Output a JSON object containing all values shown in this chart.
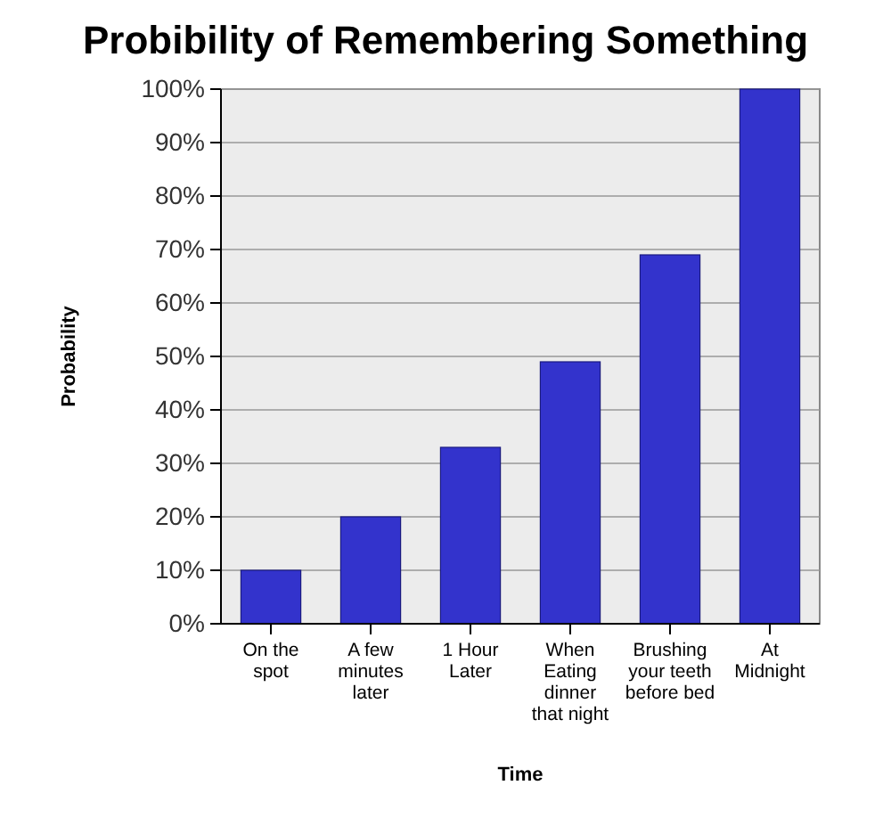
{
  "chart_data": {
    "type": "bar",
    "title": "Probibility of Remembering Something",
    "xlabel": "Time",
    "ylabel": "Probability",
    "categories": [
      "On the spot",
      "A few minutes later",
      "1 Hour Later",
      "When Eating dinner that night",
      "Brushing your teeth before bed",
      "At Midnight"
    ],
    "values": [
      10,
      20,
      33,
      49,
      69,
      100
    ],
    "color": "#3333cc",
    "ylim": [
      0,
      100
    ],
    "yticks": [
      {
        "value": 0,
        "label": "0%"
      },
      {
        "value": 10,
        "label": "10%"
      },
      {
        "value": 20,
        "label": "20%"
      },
      {
        "value": 30,
        "label": "30%"
      },
      {
        "value": 40,
        "label": "40%"
      },
      {
        "value": 50,
        "label": "50%"
      },
      {
        "value": 60,
        "label": "60%"
      },
      {
        "value": 70,
        "label": "70%"
      },
      {
        "value": 80,
        "label": "80%"
      },
      {
        "value": 90,
        "label": "90%"
      },
      {
        "value": 100,
        "label": "100%"
      }
    ],
    "grid": "y"
  }
}
